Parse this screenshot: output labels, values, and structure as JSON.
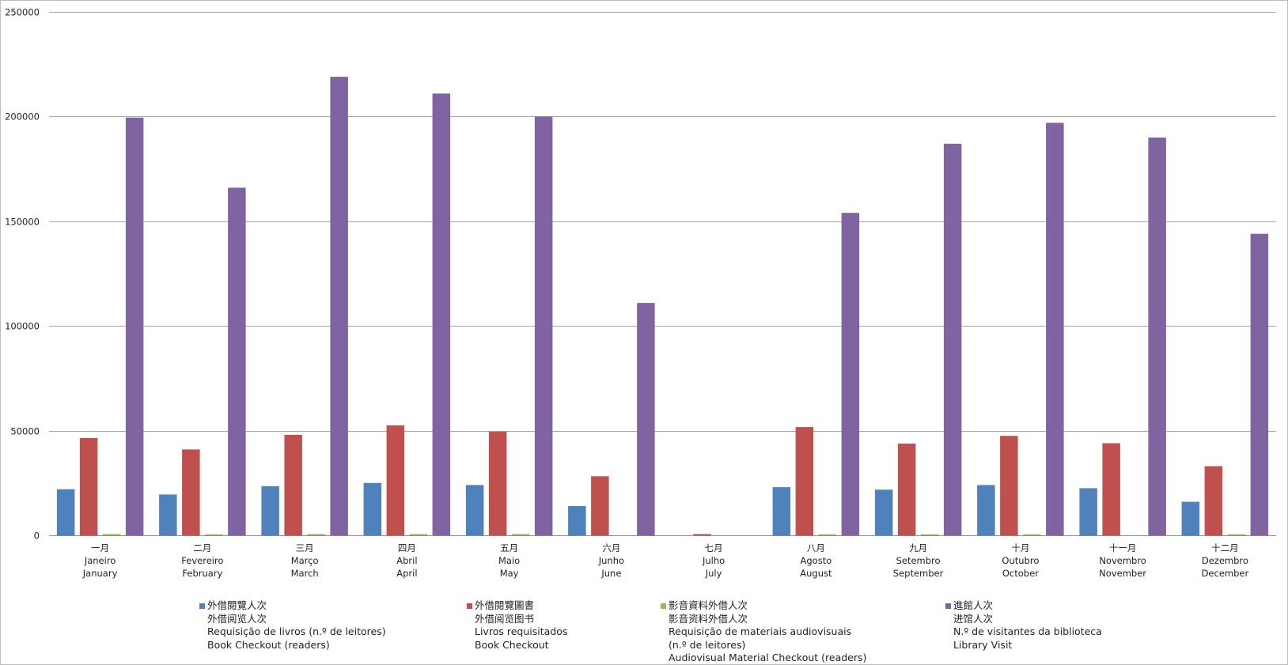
{
  "chart_data": {
    "type": "bar",
    "ylim": [
      0,
      250000
    ],
    "yticks": [
      0,
      50000,
      100000,
      150000,
      200000,
      250000
    ],
    "grid": true,
    "legend_position": "bottom",
    "categories": [
      [
        "一月",
        "Janeiro",
        "January"
      ],
      [
        "二月",
        "Fevereiro",
        "February"
      ],
      [
        "三月",
        "Março",
        "March"
      ],
      [
        "四月",
        "Abril",
        "April"
      ],
      [
        "五月",
        "Maio",
        "May"
      ],
      [
        "六月",
        "Junho",
        "June"
      ],
      [
        "七月",
        "Julho",
        "July"
      ],
      [
        "八月",
        "Agosto",
        "August"
      ],
      [
        "九月",
        "Setembro",
        "September"
      ],
      [
        "十月",
        "Outubro",
        "October"
      ],
      [
        "十一月",
        "Novembro",
        "November"
      ],
      [
        "十二月",
        "Dezembro",
        "December"
      ]
    ],
    "series": [
      {
        "name": [
          "外借閱覽人次",
          "外借阅览人次",
          "Requisição de livros (n.º de leitores)",
          "Book Checkout (readers)"
        ],
        "color": "#4f81bd",
        "values": [
          22000,
          19500,
          23500,
          25000,
          24000,
          14000,
          0,
          23000,
          21800,
          24000,
          22500,
          16000
        ]
      },
      {
        "name": [
          "外借閱覽圖書",
          "外借阅览图书",
          "Livros requisitados",
          "Book Checkout"
        ],
        "color": "#c0504d",
        "values": [
          46500,
          41000,
          48000,
          52500,
          49500,
          28200,
          600,
          51700,
          43800,
          47500,
          44000,
          33000
        ]
      },
      {
        "name": [
          "影音資料外借人次",
          "影音资料外借人次",
          "Requisição de materiais audiovisuais",
          "(n.º de leitores)",
          "Audiovisual Material Checkout (readers)"
        ],
        "color": "#9bbb59",
        "values": [
          600,
          500,
          600,
          600,
          600,
          0,
          0,
          500,
          500,
          500,
          0,
          500
        ]
      },
      {
        "name": [
          "進館人次",
          "进馆人次",
          "N.º de visitantes da biblioteca",
          "Library Visit"
        ],
        "color": "#8064a2",
        "values": [
          199500,
          166000,
          219000,
          211000,
          200000,
          111000,
          0,
          154000,
          187000,
          197000,
          190000,
          144000
        ]
      }
    ]
  }
}
